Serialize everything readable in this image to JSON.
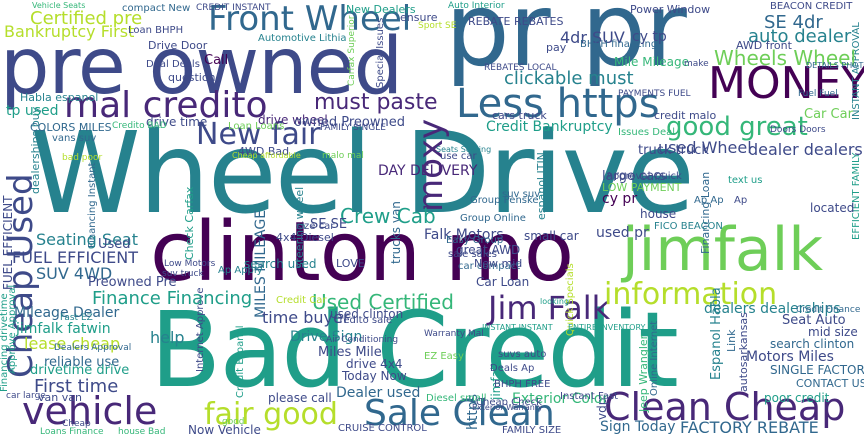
{
  "words": {
    "w1": "Wheel Drive",
    "w2": "Bad Credit",
    "w3": "clinton mo",
    "w4": "pre owned",
    "w5": "pr pr",
    "w6": "jimfalk",
    "w7": "MONEY",
    "w8": "Less https",
    "w9": "mal credito",
    "w10": "Front Wheel",
    "w11": "vehicle",
    "w12": "Clean Cheap",
    "w13": "Sale Clean",
    "w14": "fair good",
    "w15": "Jim Falk",
    "w16": "information",
    "w17": "good great",
    "w18": "Cheap Used",
    "w19": "Certified pre",
    "w20": "Bankruptcy First",
    "w21": "New fair",
    "w22": "Used Certified",
    "w23": "Finance Financing",
    "w24": "must paste",
    "w25": "clickable must",
    "w26": "Wheels Wheel",
    "w27": "moxy",
    "w28": "SE 4dr",
    "w29": "4dr SUV",
    "w30": "auto dealer",
    "w31": "Credit Bankruptcy",
    "w32": "used Wheel",
    "w33": "Crew Cab",
    "w34": "FUEL EFFICIENT",
    "w35": "SUV 4WD",
    "w36": "Seating Seat",
    "w37": "Falk Motors",
    "w38": "Mileage Dealer",
    "w39": "jimfalk fatwin",
    "w40": "time buyer",
    "w41": "Drive Sign",
    "w42": "First time",
    "w43": "Today Now",
    "w44": "Dealer used",
    "w45": "Exterior Color",
    "w46": "Sign Today",
    "w47": "FACTORY REBATE",
    "w48": "dealers dealerships",
    "w49": "Motors Miles",
    "w50": "SINGLE FACTORY",
    "w51": "search clinton",
    "w52": "poor credit",
    "w53": "Seat Auto",
    "w54": "CONTACT US",
    "w55": "reliable use",
    "w56": "drivetime drive",
    "w57": "Financing drivetime",
    "w58": "Preowned Pre",
    "w59": "lease cheap",
    "w60": "Mile Mileage",
    "w61": "drive wheel",
    "w62": "owned Preowned",
    "w63": "DAY DELIVERY",
    "w64": "MILES MILEAGE",
    "w65": "Used",
    "w66": "Habla espanol",
    "w67": "drive time",
    "w68": "Drive Door",
    "w69": "Call",
    "w70": "Deal Deals",
    "w71": "question",
    "w72": "Automotive Lithia",
    "w73": "cars truck",
    "w74": "REBATE REBATES",
    "w75": "Power Window",
    "w76": "Sport SE",
    "w77": "New Dealers",
    "w78": "CREDIT INSTANT",
    "w79": "Auto Interior",
    "w80": "BEACON CREDIT",
    "w81": "ensure",
    "w82": "AWD front",
    "w83": "BHPH financing",
    "w84": "pay",
    "w85": "cy tp",
    "w86": "Special Issues",
    "w87": "Cheap",
    "w88": "Loan BHPH",
    "w89": "tp used",
    "w90": "COLORS MILES",
    "w91": "Credito BAD",
    "w92": "vans suv",
    "w93": "bad poor",
    "w94": "dealerships buy",
    "w95": "Loan Loans",
    "w96": "FAMILY SINGLE",
    "w97": "Issues Deal",
    "w98": "credit malo",
    "w99": "Car Car",
    "w100": "Doors Doors",
    "w101": "Fuel Fuel",
    "w102": "dealer dealers",
    "w103": "truck truck",
    "w104": "large cars",
    "w105": "LOW PAYMENT",
    "w106": "Approval Quick",
    "w107": "cy pr",
    "w108": "used pr",
    "w109": "Ap Ap",
    "w110": "house",
    "w111": "located",
    "w112": "FICO BEACON",
    "w113": "Group Online",
    "w114": "Group Penske",
    "w115": "small car",
    "w116": "great AWD",
    "w117": "Car Loan",
    "w118": "Easy Group",
    "w119": "sale sales",
    "w120": "car compact",
    "w121": "New mid",
    "w122": "use car",
    "w123": "suv suv",
    "w124": "4WD Bad",
    "w125": "malo mal",
    "w126": "Seats Seating",
    "w127": "Check Carfax",
    "w128": "steering wheel",
    "w129": "size car",
    "w130": "4x4 Diesel",
    "w131": "SE SE",
    "w132": "search used",
    "w133": "LOVE",
    "w134": "trucks van",
    "w135": "Low Motors",
    "w136": "suv truck",
    "w137": "Ap Apply",
    "w138": "Fast EZ",
    "w139": "Approve Approval",
    "w140": "Credit Car",
    "w141": "credito sale",
    "w142": "used clinton",
    "w143": "Miles Mile",
    "w144": "drive 4x4",
    "w145": "Air Conditioning",
    "w146": "EZ Easy",
    "w147": "help",
    "w148": "please call",
    "w149": "Now Vehicle",
    "w150": "CRUISE CONTROL",
    "w151": "Diesel small",
    "w152": "FAMILY SIZE",
    "w153": "Cheap Check",
    "w154": "Instant Fast",
    "w155": "Internet Approve",
    "w156": "Credit Espanol",
    "w157": "van van",
    "w158": "car large",
    "w159": "Loans Finance",
    "w160": "house Bad",
    "w161": "Deals Ap",
    "w162": "suvs auto",
    "w163": "Online Internet",
    "w164": "Espanol Habla",
    "w165": "Jeep Wrangler",
    "w166": "autosarkansas",
    "w167": "Link",
    "w168": "mid size",
    "w169": "Credit Finance",
    "w170": "BHPH FREE",
    "w171": "Warranty Mal",
    "w172": "INSTANT INSTANT",
    "w173": "ENTIRE INVENTORY",
    "w174": "Quick Specials",
    "w175": "espanol ITIN",
    "w176": "Financing Loan",
    "w177": "Ap",
    "w178": "text us",
    "w179": "EFFICIENT FAMILY",
    "w180": "INSTANT APPROVAL",
    "w181": "REBATES LOCAL",
    "w182": "make",
    "w183": "DETAILS PHOTOS",
    "w184": "PAYMENTS FUEL",
    "w185": "compact New",
    "w186": "Vehicle Seats",
    "w187": "Carfax Superior",
    "w188": "Financing Instant",
    "w189": "Cheap affordable",
    "w190": "Dealers Approval",
    "w191": "Exterior Warranty",
    "w192": "https",
    "w193": "jimfalk",
    "w194": "good",
    "w195": "vdp",
    "w196": "looking"
  }
}
